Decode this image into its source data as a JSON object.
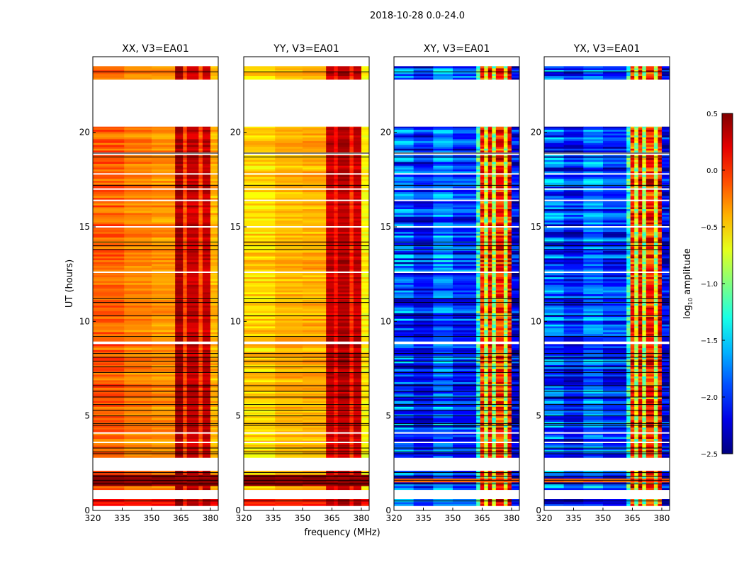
{
  "chart_data": {
    "type": "heatmap",
    "title": "2018-10-28 0.0-24.0",
    "xlabel": "frequency (MHz)",
    "ylabel": "UT (hours)",
    "xlim": [
      320,
      384
    ],
    "ylim": [
      0,
      24
    ],
    "xticks": [
      320,
      335,
      350,
      365,
      380
    ],
    "yticks": [
      0,
      5,
      10,
      15,
      20
    ],
    "colorbar": {
      "label": "log10 amplitude",
      "label_main": "log",
      "label_sub": "10",
      "label_rest": " amplitude",
      "colormap": "jet",
      "range": [
        -2.5,
        0.5
      ],
      "ticks": [
        "0.5",
        "0.0",
        "−0.5",
        "−1.0",
        "−1.5",
        "−2.0",
        "−2.5"
      ],
      "tick_values": [
        0.5,
        0.0,
        -0.5,
        -1.0,
        -1.5,
        -2.0,
        -2.5
      ]
    },
    "data_time_ranges": [
      [
        0.25,
        0.6
      ],
      [
        1.1,
        2.1
      ],
      [
        2.8,
        8.8
      ],
      [
        8.95,
        18.8
      ],
      [
        18.95,
        20.3
      ],
      [
        22.8,
        23.5
      ]
    ],
    "white_gap_times": [
      3.6,
      4.1,
      12.6,
      15.0,
      16.4,
      17.0,
      17.8
    ],
    "flag_line_times": [
      0.5,
      1.4,
      1.6,
      1.8,
      2.0,
      3.0,
      3.1,
      3.3,
      4.5,
      4.6,
      5.0,
      5.3,
      5.6,
      6.0,
      6.3,
      6.6,
      7.3,
      7.6,
      7.9,
      8.1,
      8.3,
      9.2,
      10.3,
      11.0,
      11.2,
      13.8,
      14.0,
      14.2,
      17.2,
      18.7,
      18.9,
      23.2
    ],
    "panels": [
      {
        "title": "XX, V3=EA01",
        "freq_profile": [
          [
            320,
            336,
            -0.15
          ],
          [
            336,
            350,
            -0.25
          ],
          [
            350,
            362,
            -0.3
          ],
          [
            362,
            366,
            0.4
          ],
          [
            366,
            368,
            -0.1
          ],
          [
            368,
            374,
            0.3
          ],
          [
            374,
            376,
            -0.1
          ],
          [
            376,
            380,
            0.3
          ],
          [
            380,
            384,
            -0.4
          ]
        ],
        "row_noise": 0.12,
        "events": [
          [
            1.3,
            1.9,
            0.45
          ],
          [
            0.25,
            0.6,
            0.1
          ]
        ]
      },
      {
        "title": "YY, V3=EA01",
        "freq_profile": [
          [
            320,
            336,
            -0.5
          ],
          [
            336,
            350,
            -0.4
          ],
          [
            350,
            362,
            -0.38
          ],
          [
            362,
            366,
            0.3
          ],
          [
            366,
            368,
            0.1
          ],
          [
            368,
            374,
            0.35
          ],
          [
            374,
            376,
            0.0
          ],
          [
            376,
            380,
            0.3
          ],
          [
            380,
            384,
            -0.6
          ]
        ],
        "row_noise": 0.12,
        "events": [
          [
            1.3,
            1.9,
            0.45
          ],
          [
            0.25,
            0.6,
            0.05
          ]
        ]
      },
      {
        "title": "XY, V3=EA01",
        "freq_profile": [
          [
            320,
            330,
            -1.9
          ],
          [
            330,
            340,
            -2.1
          ],
          [
            340,
            350,
            -1.8
          ],
          [
            350,
            362,
            -2.0
          ],
          [
            362,
            364,
            -1.3
          ],
          [
            364,
            366,
            0.0
          ],
          [
            366,
            368,
            -0.8
          ],
          [
            368,
            370,
            0.1
          ],
          [
            370,
            372,
            -0.9
          ],
          [
            372,
            376,
            0.0
          ],
          [
            376,
            378,
            -0.8
          ],
          [
            378,
            380,
            0.1
          ],
          [
            380,
            384,
            -2.2
          ]
        ],
        "row_noise": 0.35,
        "events": [
          [
            1.5,
            1.7,
            -0.2
          ]
        ]
      },
      {
        "title": "YX, V3=EA01",
        "freq_profile": [
          [
            320,
            330,
            -1.9
          ],
          [
            330,
            340,
            -2.1
          ],
          [
            340,
            350,
            -1.8
          ],
          [
            350,
            362,
            -2.0
          ],
          [
            362,
            364,
            -1.3
          ],
          [
            364,
            366,
            0.0
          ],
          [
            366,
            368,
            -0.8
          ],
          [
            368,
            370,
            0.1
          ],
          [
            370,
            372,
            -0.9
          ],
          [
            372,
            376,
            0.0
          ],
          [
            376,
            378,
            -0.8
          ],
          [
            378,
            380,
            0.1
          ],
          [
            380,
            384,
            -2.2
          ]
        ],
        "row_noise": 0.35,
        "events": [
          [
            1.5,
            1.7,
            -0.2
          ]
        ]
      }
    ]
  }
}
